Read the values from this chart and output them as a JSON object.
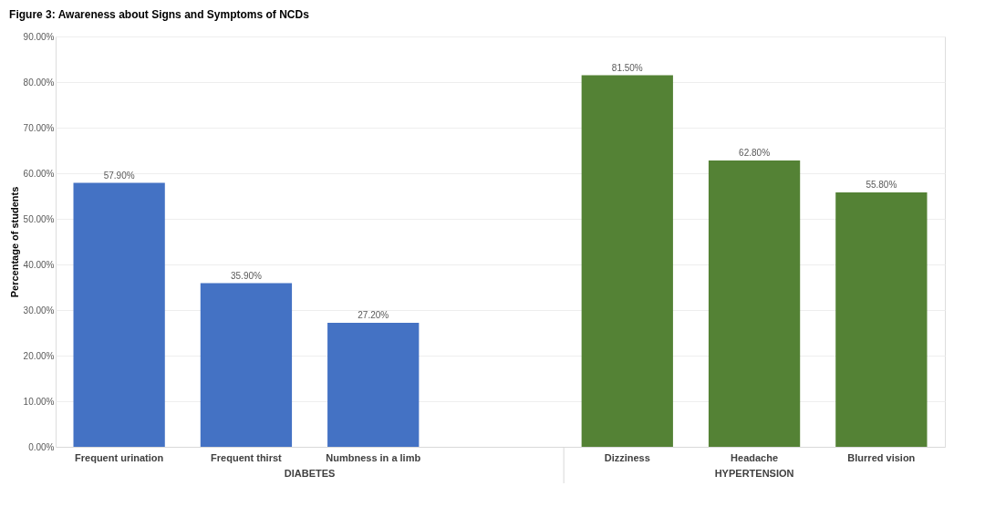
{
  "chart_data": {
    "type": "bar",
    "title": "Figure 3: Awareness about Signs and Symptoms of NCDs",
    "ylabel": "Percentage of students",
    "categories": [
      "Frequent urination",
      "Frequent thirst",
      "Numbness in a limb",
      null,
      "Dizziness",
      "Headache",
      "Blurred vision"
    ],
    "values": [
      57.9,
      35.9,
      27.2,
      null,
      81.5,
      62.8,
      55.8
    ],
    "colors": [
      "#4472c4",
      "#4472c4",
      "#4472c4",
      "#4472c4",
      "#548235",
      "#548235",
      "#548235"
    ],
    "value_labels": [
      "57.90%",
      "35.90%",
      "27.20%",
      null,
      "81.50%",
      "62.80%",
      "55.80%"
    ],
    "annotations": [
      "DIABETES",
      "HYPERTENSION"
    ],
    "ylim": [
      0,
      90
    ],
    "yticks": [
      {
        "value": 0,
        "label": "0.00%"
      },
      {
        "value": 10,
        "label": "10.00%"
      },
      {
        "value": 20,
        "label": "20.00%"
      },
      {
        "value": 30,
        "label": "30.00%"
      },
      {
        "value": 40,
        "label": "40.00%"
      },
      {
        "value": 50,
        "label": "50.00%"
      },
      {
        "value": 60,
        "label": "60.00%"
      },
      {
        "value": 70,
        "label": "70.00%"
      },
      {
        "value": 80,
        "label": "80.00%"
      },
      {
        "value": 90,
        "label": "90.00%"
      }
    ],
    "grid": "y"
  }
}
